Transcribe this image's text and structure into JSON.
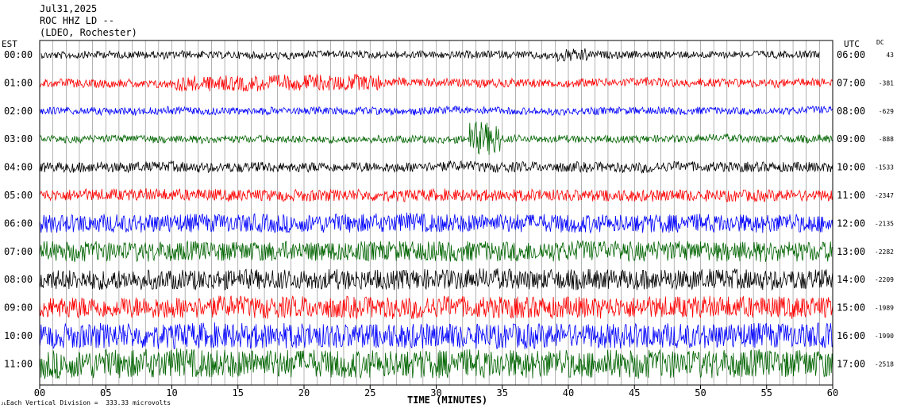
{
  "header": {
    "date": "Jul31,2025",
    "station": "ROC HHZ LD --",
    "network": "(LDEO, Rochester)"
  },
  "left_zone_label": "EST",
  "right_zone_label": "UTC",
  "dc_label": "DC",
  "scale_note": "Each Vertical Division =  333.33 microvolts",
  "scale_mark": "ᴊʟ",
  "colors": {
    "black": "#000000",
    "red": "#ff0000",
    "blue": "#0000ff",
    "green": "#006400",
    "grid": "#808080"
  },
  "chart_data": {
    "type": "line",
    "title": "",
    "xlabel": "TIME (MINUTES)",
    "ylabel": "",
    "xlim": [
      0,
      60
    ],
    "x_ticks": [
      "00",
      "05",
      "10",
      "15",
      "20",
      "25",
      "30",
      "35",
      "40",
      "45",
      "50",
      "55",
      "60"
    ],
    "grid": true,
    "series": [
      {
        "left": "00:00",
        "right": "06:00",
        "dc": "43",
        "color": "black",
        "amp": 0.22
      },
      {
        "left": "01:00",
        "right": "07:00",
        "dc": "-381",
        "color": "red",
        "amp": 0.25
      },
      {
        "left": "02:00",
        "right": "08:00",
        "dc": "-629",
        "color": "blue",
        "amp": 0.22
      },
      {
        "left": "03:00",
        "right": "09:00",
        "dc": "-888",
        "color": "green",
        "amp": 0.22
      },
      {
        "left": "04:00",
        "right": "10:00",
        "dc": "-1533",
        "color": "black",
        "amp": 0.3
      },
      {
        "left": "05:00",
        "right": "11:00",
        "dc": "-2347",
        "color": "red",
        "amp": 0.35
      },
      {
        "left": "06:00",
        "right": "12:00",
        "dc": "-2135",
        "color": "blue",
        "amp": 0.55
      },
      {
        "left": "07:00",
        "right": "13:00",
        "dc": "-2282",
        "color": "green",
        "amp": 0.6
      },
      {
        "left": "08:00",
        "right": "14:00",
        "dc": "-2209",
        "color": "black",
        "amp": 0.6
      },
      {
        "left": "09:00",
        "right": "15:00",
        "dc": "-1989",
        "color": "red",
        "amp": 0.65
      },
      {
        "left": "10:00",
        "right": "16:00",
        "dc": "-1990",
        "color": "blue",
        "amp": 0.75
      },
      {
        "left": "11:00",
        "right": "17:00",
        "dc": "-2518",
        "color": "green",
        "amp": 0.85
      }
    ]
  }
}
